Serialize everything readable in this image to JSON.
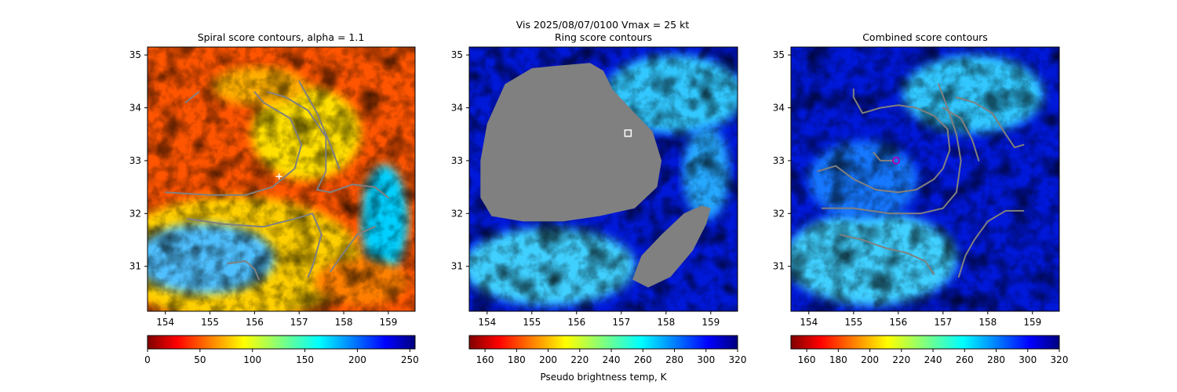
{
  "figure": {
    "suptitle": "Vis  2025/08/07/0100    Vmax = 25 kt"
  },
  "chart_data": [
    {
      "type": "heatmap",
      "title": "Spiral score contours, alpha =  1.1",
      "xlim": [
        153.6,
        159.6
      ],
      "ylim": [
        30.15,
        35.15
      ],
      "xticks": [
        "154",
        "155",
        "156",
        "157",
        "158",
        "159"
      ],
      "yticks": [
        "31",
        "32",
        "33",
        "34",
        "35"
      ],
      "colormap": "jet_r",
      "colorbar": {
        "range": [
          0,
          255
        ],
        "ticks": [
          "0",
          "50",
          "100",
          "150",
          "200",
          "250"
        ],
        "label": ""
      },
      "contour_color": "#808080",
      "contours": [
        [
          [
            154.0,
            32.4
          ],
          [
            155.0,
            32.35
          ],
          [
            155.8,
            32.35
          ],
          [
            156.4,
            32.5
          ],
          [
            156.9,
            32.85
          ],
          [
            157.05,
            33.3
          ],
          [
            156.8,
            33.8
          ],
          [
            156.2,
            34.1
          ],
          [
            156.0,
            34.3
          ]
        ],
        [
          [
            154.5,
            31.9
          ],
          [
            155.3,
            31.8
          ],
          [
            156.2,
            31.75
          ],
          [
            156.9,
            31.9
          ],
          [
            157.3,
            32.0
          ],
          [
            157.5,
            31.6
          ],
          [
            157.3,
            31.0
          ],
          [
            157.2,
            30.8
          ]
        ],
        [
          [
            155.4,
            31.05
          ],
          [
            155.8,
            31.1
          ],
          [
            156.0,
            30.95
          ],
          [
            156.1,
            30.75
          ]
        ],
        [
          [
            156.3,
            34.3
          ],
          [
            156.7,
            34.2
          ],
          [
            157.2,
            33.95
          ],
          [
            157.6,
            33.45
          ],
          [
            157.6,
            32.8
          ],
          [
            157.4,
            32.45
          ],
          [
            157.7,
            32.4
          ],
          [
            158.2,
            32.55
          ],
          [
            158.7,
            32.5
          ],
          [
            159.0,
            32.3
          ]
        ],
        [
          [
            157.0,
            34.5
          ],
          [
            157.4,
            33.9
          ],
          [
            157.7,
            33.3
          ],
          [
            157.9,
            32.85
          ]
        ],
        [
          [
            157.7,
            30.9
          ],
          [
            157.95,
            31.2
          ],
          [
            158.3,
            31.6
          ],
          [
            158.7,
            31.75
          ]
        ],
        [
          [
            154.45,
            34.1
          ],
          [
            154.75,
            34.3
          ]
        ]
      ],
      "markers": [
        {
          "x": 156.55,
          "y": 32.7,
          "symbol": "plus",
          "color": "#ffffff"
        }
      ]
    },
    {
      "type": "heatmap",
      "title": "Ring score contours",
      "xlim": [
        153.6,
        159.6
      ],
      "ylim": [
        30.15,
        35.15
      ],
      "xticks": [
        "154",
        "155",
        "156",
        "157",
        "158",
        "159"
      ],
      "yticks": [
        "31",
        "32",
        "33",
        "34",
        "35"
      ],
      "colormap": "jet_r",
      "colorbar": {
        "range": [
          150,
          320
        ],
        "ticks": [
          "160",
          "180",
          "200",
          "220",
          "240",
          "260",
          "280",
          "300",
          "320"
        ],
        "label": "Pseudo brightness temp, K"
      },
      "masked_regions": [
        [
          [
            154.4,
            34.45
          ],
          [
            155.0,
            34.75
          ],
          [
            155.6,
            34.8
          ],
          [
            156.3,
            34.85
          ],
          [
            156.6,
            34.7
          ],
          [
            156.8,
            34.35
          ],
          [
            157.3,
            33.9
          ],
          [
            157.7,
            33.55
          ],
          [
            157.9,
            33.0
          ],
          [
            157.8,
            32.5
          ],
          [
            157.3,
            32.1
          ],
          [
            156.5,
            31.95
          ],
          [
            155.7,
            31.85
          ],
          [
            154.8,
            31.85
          ],
          [
            154.1,
            31.95
          ],
          [
            153.85,
            32.3
          ],
          [
            153.85,
            33.0
          ],
          [
            154.0,
            33.7
          ],
          [
            154.4,
            34.45
          ]
        ],
        [
          [
            157.25,
            30.75
          ],
          [
            157.6,
            30.6
          ],
          [
            158.1,
            30.8
          ],
          [
            158.6,
            31.3
          ],
          [
            158.9,
            31.8
          ],
          [
            159.0,
            32.1
          ],
          [
            158.8,
            32.15
          ],
          [
            158.4,
            32.0
          ],
          [
            157.9,
            31.6
          ],
          [
            157.45,
            31.2
          ],
          [
            157.25,
            30.75
          ]
        ]
      ],
      "markers": [
        {
          "x": 157.15,
          "y": 33.52,
          "symbol": "square",
          "color": "#ffffff"
        }
      ]
    },
    {
      "type": "heatmap",
      "title": "Combined score contours",
      "xlim": [
        153.6,
        159.6
      ],
      "ylim": [
        30.15,
        35.15
      ],
      "xticks": [
        "154",
        "155",
        "156",
        "157",
        "158",
        "159"
      ],
      "yticks": [
        "31",
        "32",
        "33",
        "34",
        "35"
      ],
      "colormap": "jet_r",
      "colorbar": {
        "range": [
          150,
          320
        ],
        "ticks": [
          "160",
          "180",
          "200",
          "220",
          "240",
          "260",
          "280",
          "300",
          "320"
        ],
        "label": ""
      },
      "contour_color": "#808080",
      "contours": [
        [
          [
            154.2,
            32.8
          ],
          [
            154.6,
            32.9
          ],
          [
            155.0,
            32.65
          ],
          [
            155.5,
            32.45
          ],
          [
            156.0,
            32.4
          ],
          [
            156.4,
            32.45
          ],
          [
            156.8,
            32.65
          ],
          [
            157.0,
            32.85
          ],
          [
            157.15,
            33.2
          ],
          [
            157.1,
            33.6
          ],
          [
            156.8,
            33.85
          ],
          [
            156.4,
            34.0
          ],
          [
            156.0,
            34.05
          ],
          [
            155.6,
            34.0
          ],
          [
            155.2,
            33.9
          ],
          [
            155.0,
            34.2
          ],
          [
            155.0,
            34.35
          ]
        ],
        [
          [
            154.3,
            32.1
          ],
          [
            155.0,
            32.1
          ],
          [
            155.8,
            32.0
          ],
          [
            156.5,
            32.0
          ],
          [
            157.0,
            32.1
          ],
          [
            157.3,
            32.4
          ],
          [
            157.4,
            33.0
          ],
          [
            157.3,
            33.5
          ],
          [
            157.1,
            34.0
          ],
          [
            156.9,
            34.45
          ]
        ],
        [
          [
            157.0,
            34.0
          ],
          [
            157.4,
            33.8
          ],
          [
            157.65,
            33.4
          ],
          [
            157.8,
            33.0
          ]
        ],
        [
          [
            157.3,
            34.2
          ],
          [
            157.7,
            34.1
          ],
          [
            158.1,
            33.9
          ],
          [
            158.4,
            33.5
          ],
          [
            158.6,
            33.25
          ],
          [
            158.8,
            33.3
          ]
        ],
        [
          [
            154.7,
            31.6
          ],
          [
            155.2,
            31.5
          ],
          [
            155.7,
            31.35
          ],
          [
            156.2,
            31.25
          ],
          [
            156.6,
            31.1
          ],
          [
            156.8,
            30.85
          ]
        ],
        [
          [
            157.35,
            30.8
          ],
          [
            157.5,
            31.2
          ],
          [
            157.7,
            31.5
          ],
          [
            158.0,
            31.85
          ],
          [
            158.4,
            32.05
          ],
          [
            158.8,
            32.05
          ]
        ],
        [
          [
            155.45,
            33.15
          ],
          [
            155.6,
            33.0
          ],
          [
            155.9,
            33.0
          ]
        ]
      ],
      "markers": [
        {
          "x": 155.95,
          "y": 33.0,
          "symbol": "circle",
          "color": "#b000b0"
        }
      ]
    }
  ]
}
